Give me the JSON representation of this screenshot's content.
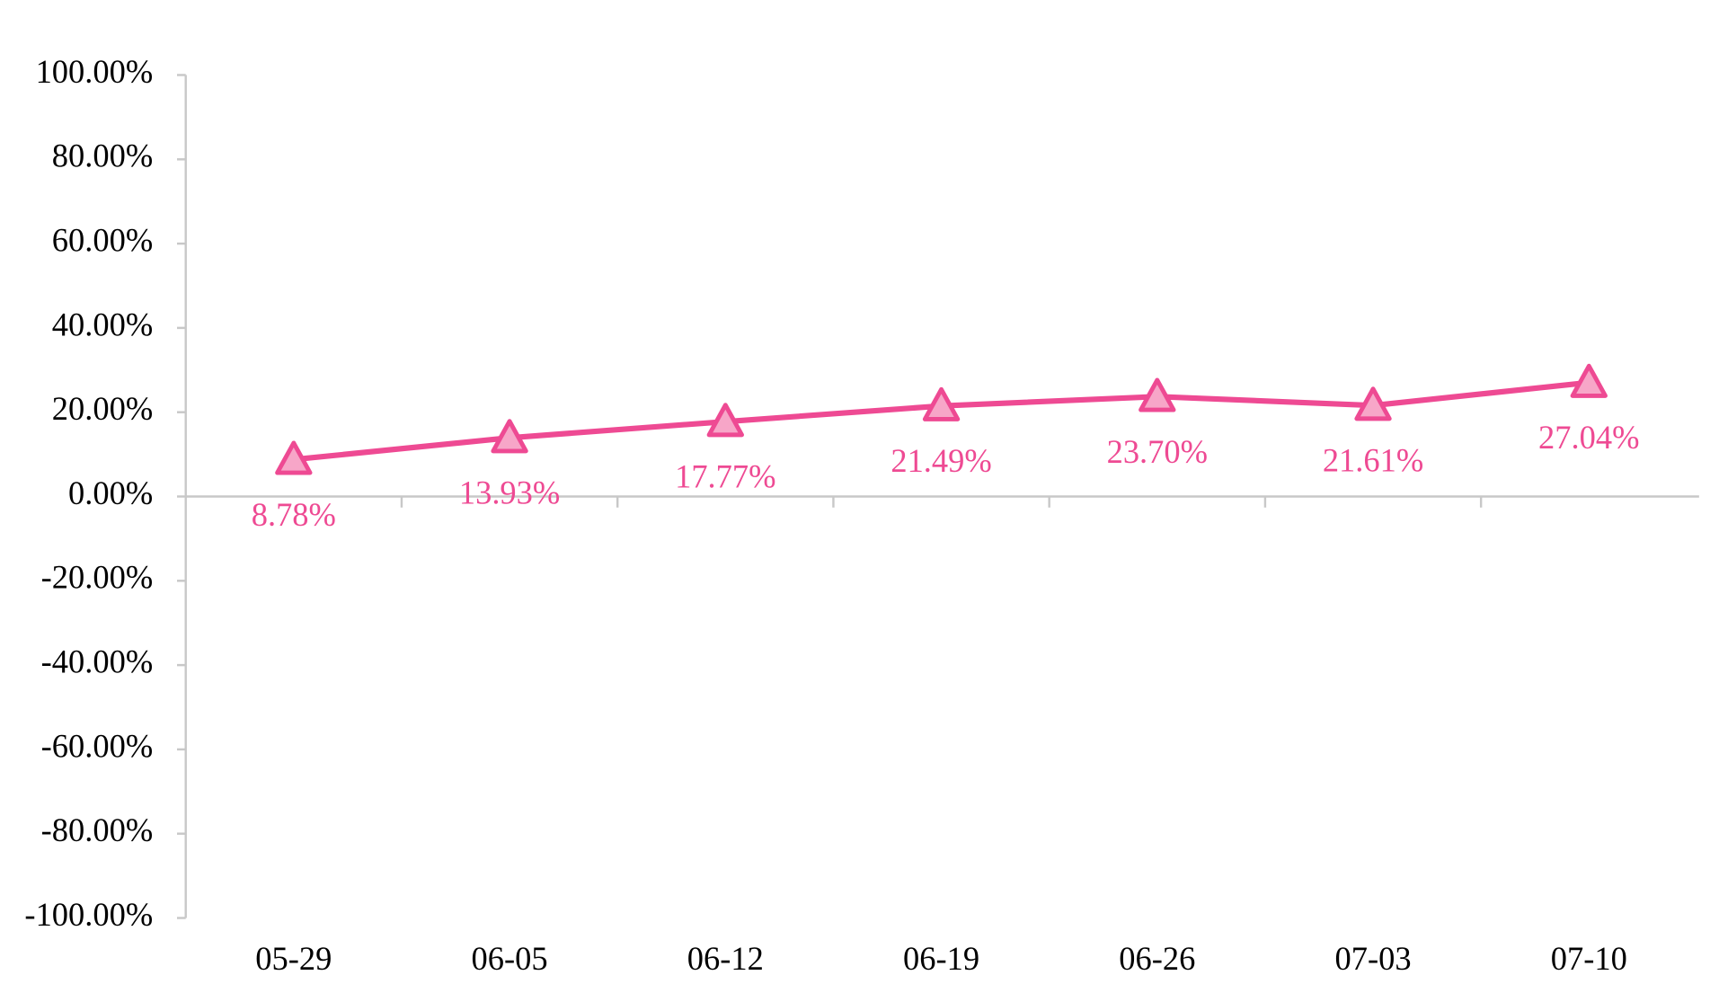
{
  "chart_data": {
    "type": "line",
    "categories": [
      "05-29",
      "06-05",
      "06-12",
      "06-19",
      "06-26",
      "07-03",
      "07-10"
    ],
    "series": [
      {
        "color": "#ee4a93",
        "marker_fill": "#f7a6c8",
        "values": [
          8.78,
          13.93,
          17.77,
          21.49,
          23.7,
          21.61,
          27.04
        ],
        "value_labels": [
          "8.78%",
          "13.93%",
          "17.77%",
          "21.49%",
          "23.70%",
          "21.61%",
          "27.04%"
        ]
      }
    ],
    "ylim": [
      -100,
      100
    ],
    "yticks": [
      {
        "value": -100,
        "label": "-100.00%"
      },
      {
        "value": -80,
        "label": "-80.00%"
      },
      {
        "value": -60,
        "label": "-60.00%"
      },
      {
        "value": -40,
        "label": "-40.00%"
      },
      {
        "value": -20,
        "label": "-20.00%"
      },
      {
        "value": 0,
        "label": "0.00%"
      },
      {
        "value": 20,
        "label": "20.00%"
      },
      {
        "value": 40,
        "label": "40.00%"
      },
      {
        "value": 60,
        "label": "60.00%"
      },
      {
        "value": 80,
        "label": "80.00%"
      },
      {
        "value": 100,
        "label": "100.00%"
      }
    ],
    "grid": false
  }
}
